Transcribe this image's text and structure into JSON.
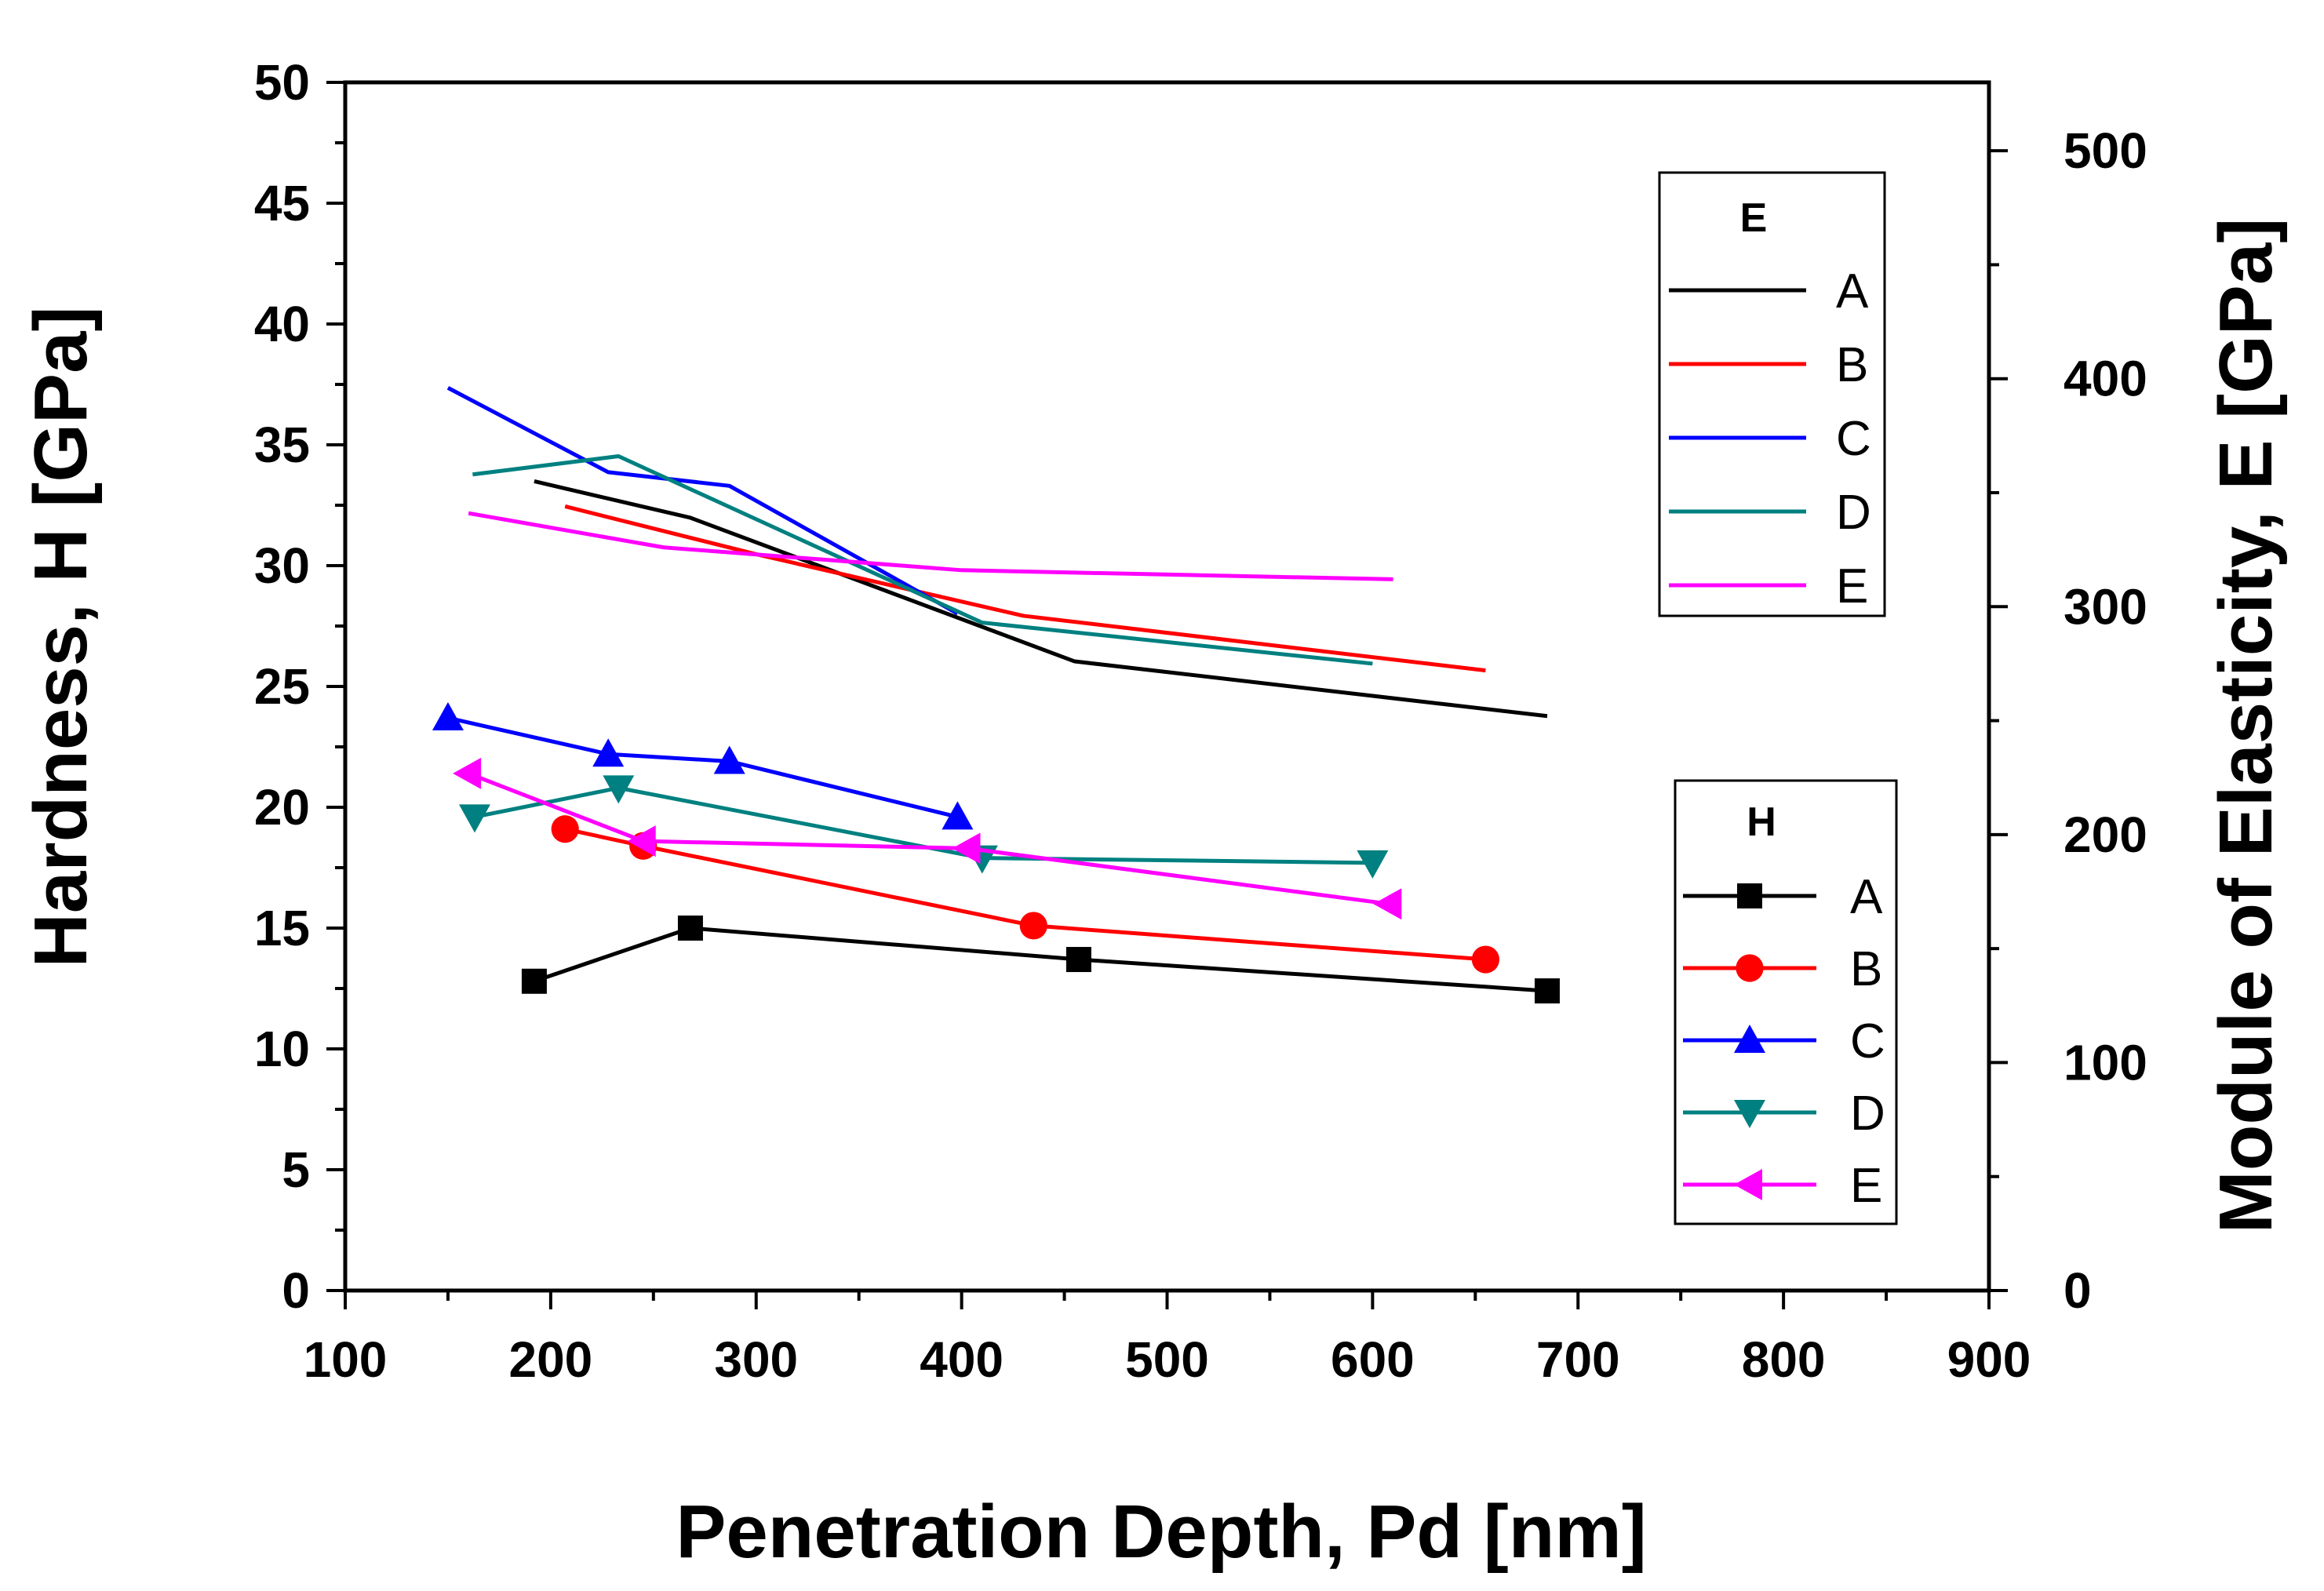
{
  "chart_data": {
    "type": "line",
    "xlabel": "Penetration Depth, Pd [nm]",
    "ylabel_left": "Hardness, H [GPa]",
    "ylabel_right": "Module of Elasticity, E [GPa]",
    "xlim": [
      100,
      900
    ],
    "ylim_left": [
      0,
      50
    ],
    "ylim_right": [
      0,
      530
    ],
    "x_ticks": [
      100,
      200,
      300,
      400,
      500,
      600,
      700,
      800,
      900
    ],
    "y_left_ticks": [
      0,
      5,
      10,
      15,
      20,
      25,
      30,
      35,
      40,
      45,
      50
    ],
    "y_right_ticks": [
      0,
      100,
      200,
      300,
      400,
      500
    ],
    "legend_E_title": "E",
    "legend_H_title": "H",
    "E_series": [
      {
        "name": "A",
        "color": "#000000",
        "x": [
          192,
          268,
          455,
          685
        ],
        "y": [
          355,
          339,
          276,
          252
        ]
      },
      {
        "name": "B",
        "color": "#ff0000",
        "x": [
          207,
          300,
          430,
          655
        ],
        "y": [
          344,
          323,
          296,
          272
        ]
      },
      {
        "name": "C",
        "color": "#0000ff",
        "x": [
          150,
          228,
          287,
          398
        ],
        "y": [
          396,
          359,
          353,
          297
        ]
      },
      {
        "name": "D",
        "color": "#008080",
        "x": [
          162,
          233,
          410,
          600
        ],
        "y": [
          358,
          366,
          293,
          275
        ]
      },
      {
        "name": "E",
        "color": "#ff00ff",
        "x": [
          160,
          255,
          400,
          610
        ],
        "y": [
          341,
          326,
          316,
          312
        ]
      }
    ],
    "H_series": [
      {
        "name": "A",
        "color": "#000000",
        "marker": "square",
        "x": [
          192,
          268,
          457,
          685
        ],
        "y": [
          12.8,
          15.0,
          13.7,
          12.4
        ]
      },
      {
        "name": "B",
        "color": "#ff0000",
        "marker": "circle",
        "x": [
          207,
          245,
          435,
          655
        ],
        "y": [
          19.1,
          18.4,
          15.1,
          13.7
        ]
      },
      {
        "name": "C",
        "color": "#0000ff",
        "marker": "triangle-up",
        "x": [
          150,
          228,
          287,
          398
        ],
        "y": [
          23.7,
          22.2,
          21.9,
          19.6
        ]
      },
      {
        "name": "D",
        "color": "#008080",
        "marker": "triangle-down",
        "x": [
          163,
          233,
          410,
          600
        ],
        "y": [
          19.6,
          20.8,
          17.9,
          17.7
        ]
      },
      {
        "name": "E",
        "color": "#ff00ff",
        "marker": "triangle-left",
        "x": [
          160,
          245,
          403,
          608
        ],
        "y": [
          21.4,
          18.6,
          18.3,
          16.0
        ]
      }
    ]
  }
}
